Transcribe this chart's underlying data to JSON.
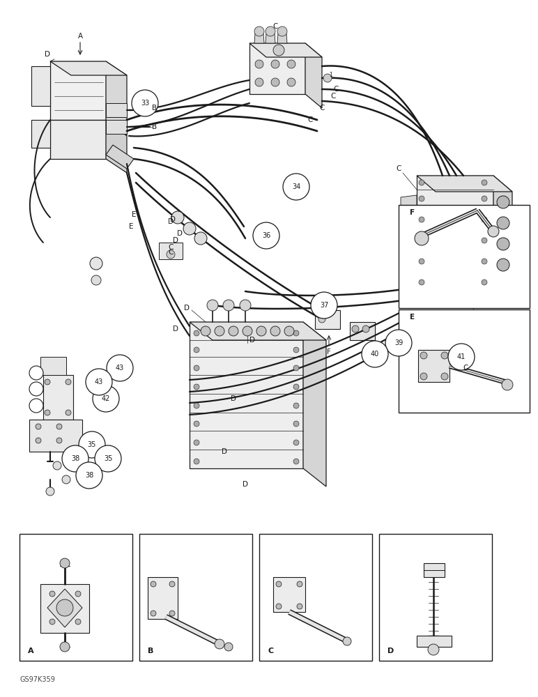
{
  "bg": "#ffffff",
  "lc": "#1a1a1a",
  "fig_w": 7.72,
  "fig_h": 10.0,
  "dpi": 100,
  "footer": "GS97K359",
  "callouts": [
    [
      2.08,
      8.52,
      "33"
    ],
    [
      4.25,
      7.32,
      "34"
    ],
    [
      3.82,
      6.62,
      "36"
    ],
    [
      4.65,
      5.62,
      "37"
    ],
    [
      5.72,
      5.08,
      "39"
    ],
    [
      5.38,
      4.92,
      "40"
    ],
    [
      6.62,
      4.88,
      "41"
    ],
    [
      1.52,
      4.28,
      "42"
    ],
    [
      1.68,
      4.72,
      "43"
    ],
    [
      1.38,
      4.52,
      "43"
    ],
    [
      1.28,
      3.58,
      "35"
    ],
    [
      1.05,
      3.38,
      "38"
    ],
    [
      1.48,
      3.42,
      "35"
    ],
    [
      1.22,
      3.18,
      "38"
    ]
  ]
}
